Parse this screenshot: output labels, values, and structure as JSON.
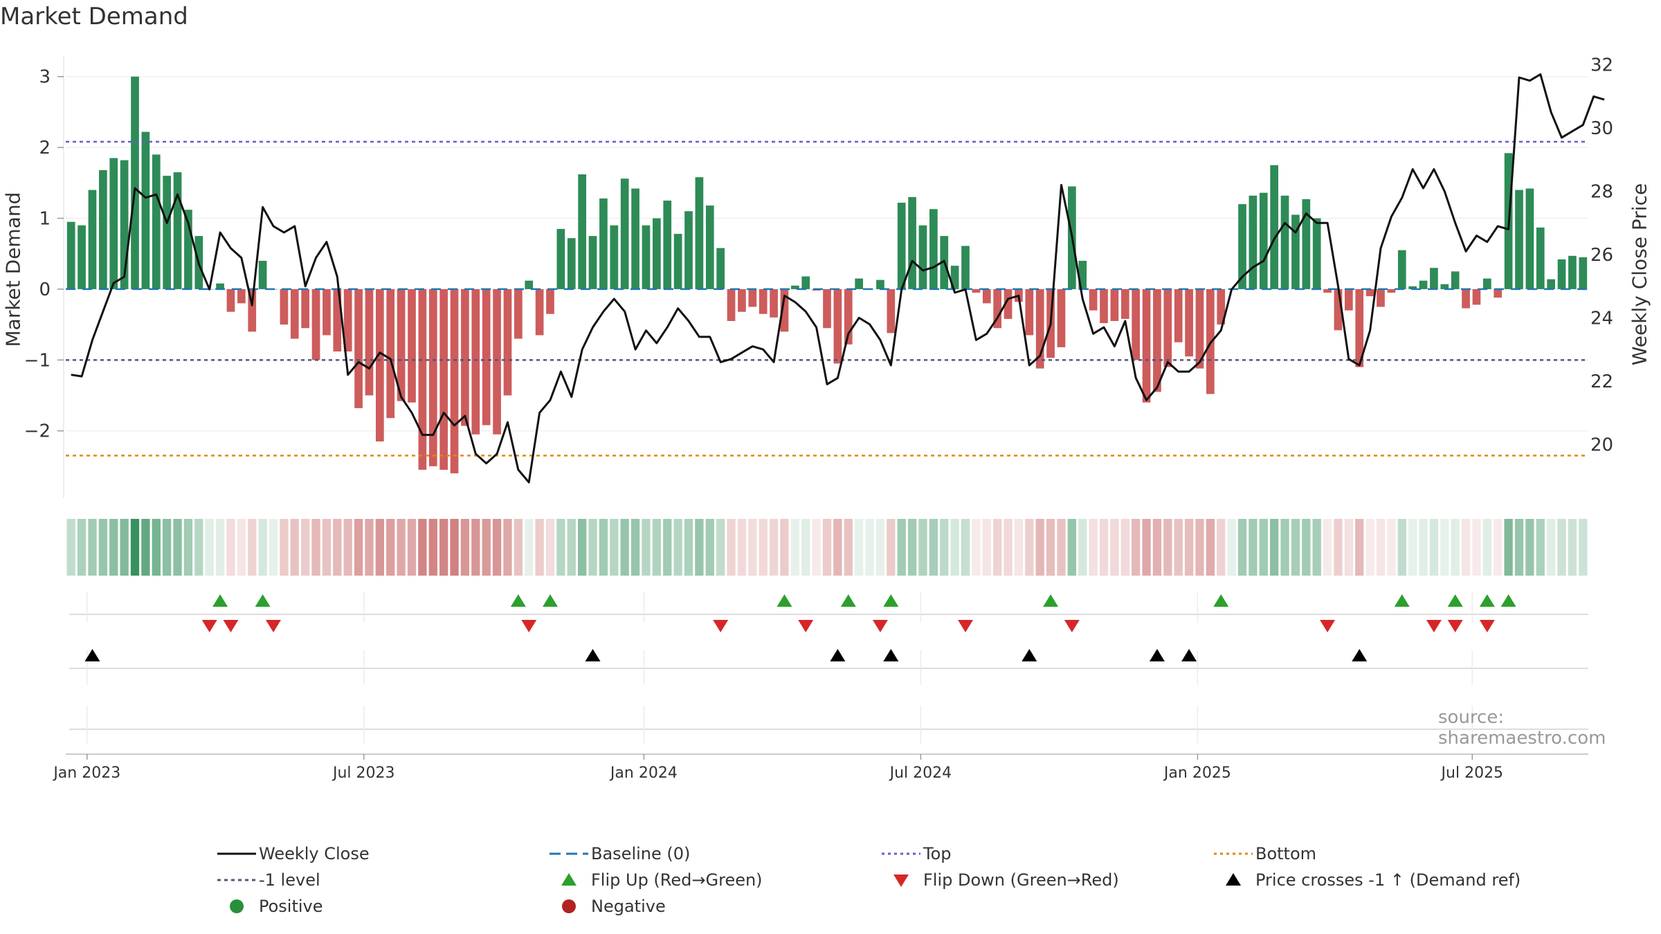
{
  "title": "Market Demand",
  "watermark": "source: sharemaestro.com",
  "chart_data": {
    "type": "bar+line",
    "title": "Market Demand",
    "ylabel_left": "Market Demand",
    "ylabel_right": "Weekly Close Price",
    "ylim_left": [
      -2.95,
      3.3
    ],
    "ylim_right": [
      18.3,
      32.3
    ],
    "yticks_left": [
      -2,
      -1,
      0,
      1,
      2,
      3
    ],
    "yticks_right": [
      20,
      22,
      24,
      26,
      28,
      30,
      32
    ],
    "x_ticks": [
      {
        "label": "Jan 2023",
        "week": 2
      },
      {
        "label": "Jul 2023",
        "week": 28
      },
      {
        "label": "Jan 2024",
        "week": 54.3
      },
      {
        "label": "Jul 2024",
        "week": 80.3
      },
      {
        "label": "Jan 2025",
        "week": 106.3
      },
      {
        "label": "Jul 2025",
        "week": 132.1
      }
    ],
    "reference_lines": {
      "top": 2.08,
      "bottom": -2.35,
      "minus_one": -1,
      "baseline": 0
    },
    "demand": [
      0.95,
      0.9,
      1.4,
      1.68,
      1.85,
      1.82,
      3.0,
      2.22,
      1.9,
      1.6,
      1.65,
      1.12,
      0.75,
      0,
      0.08,
      -0.32,
      -0.2,
      -0.6,
      0.4,
      0,
      -0.5,
      -0.7,
      -0.55,
      -1.0,
      -0.65,
      -0.88,
      -0.88,
      -1.68,
      -1.5,
      -2.15,
      -1.82,
      -1.58,
      -1.6,
      -2.55,
      -2.5,
      -2.55,
      -2.6,
      -1.93,
      -2.05,
      -1.92,
      -2.05,
      -1.5,
      -0.7,
      0.12,
      -0.65,
      -0.35,
      0.85,
      0.72,
      1.62,
      0.75,
      1.28,
      0.9,
      1.56,
      1.42,
      0.9,
      1.0,
      1.25,
      0.78,
      1.1,
      1.58,
      1.18,
      0.58,
      -0.45,
      -0.32,
      -0.25,
      -0.35,
      -0.4,
      -0.6,
      0.05,
      0.18,
      -0.02,
      -0.55,
      -1.05,
      -0.78,
      0.15,
      0,
      0.13,
      -0.62,
      1.22,
      1.3,
      0.9,
      1.13,
      0.75,
      0.33,
      0.61,
      -0.05,
      -0.2,
      -0.55,
      -0.42,
      -0.18,
      -0.65,
      -1.12,
      -0.97,
      -0.82,
      1.45,
      0.4,
      -0.3,
      -0.48,
      -0.45,
      -0.42,
      -1.0,
      -1.6,
      -1.45,
      -1.1,
      -0.75,
      -0.95,
      -1.12,
      -1.48,
      -0.5,
      0,
      1.2,
      1.32,
      1.36,
      1.75,
      1.32,
      1.05,
      1.27,
      1.0,
      -0.05,
      -0.58,
      -0.3,
      -1.1,
      -0.1,
      -0.25,
      -0.05,
      0.55,
      0.04,
      0.12,
      0.3,
      0.07,
      0.25,
      -0.27,
      -0.22,
      0.15,
      -0.12,
      1.92,
      1.4,
      1.42,
      0.87,
      0.14,
      0.42,
      0.47,
      0.45
    ],
    "close": [
      22.2,
      22.15,
      23.3,
      24.2,
      25.1,
      25.3,
      28.1,
      27.8,
      27.9,
      27.0,
      27.9,
      27.0,
      25.7,
      24.9,
      26.7,
      26.2,
      25.9,
      24.4,
      27.5,
      26.9,
      26.7,
      26.9,
      25.0,
      25.9,
      26.4,
      25.3,
      22.2,
      22.6,
      22.4,
      22.9,
      22.7,
      21.5,
      21.0,
      20.3,
      20.3,
      21.0,
      20.6,
      20.9,
      19.7,
      19.4,
      19.7,
      20.7,
      19.2,
      18.8,
      21.0,
      21.4,
      22.3,
      21.5,
      23.0,
      23.7,
      24.2,
      24.6,
      24.2,
      23.0,
      23.6,
      23.2,
      23.7,
      24.3,
      23.9,
      23.4,
      23.4,
      22.6,
      22.7,
      22.9,
      23.1,
      23.0,
      22.6,
      24.7,
      24.5,
      24.2,
      23.7,
      21.9,
      22.1,
      23.5,
      24.0,
      23.8,
      23.3,
      22.5,
      24.9,
      25.8,
      25.5,
      25.6,
      25.8,
      24.8,
      24.9,
      23.3,
      23.5,
      24.0,
      24.6,
      24.7,
      22.5,
      22.8,
      23.8,
      28.2,
      26.6,
      24.6,
      23.5,
      23.7,
      23.1,
      23.9,
      22.1,
      21.4,
      21.8,
      22.6,
      22.3,
      22.3,
      22.6,
      23.2,
      23.6,
      24.9,
      25.3,
      25.6,
      25.8,
      26.5,
      27.0,
      26.7,
      27.3,
      27.0,
      27.0,
      25.0,
      22.7,
      22.5,
      23.6,
      26.2,
      27.2,
      27.8,
      28.7,
      28.1,
      28.7,
      28.0,
      27.0,
      26.1,
      26.6,
      26.4,
      26.9,
      26.8,
      31.6,
      31.5,
      31.7,
      30.5,
      29.7,
      29.9,
      30.1,
      31.0,
      30.9
    ],
    "heatmap": {
      "levels": [
        0.3,
        0.4,
        0.45,
        0.5,
        0.55,
        0.6,
        0.95,
        0.75,
        0.65,
        0.55,
        0.55,
        0.45,
        0.35,
        0.15,
        0.15,
        0.2,
        0.15,
        0.25,
        0.2,
        0.1,
        0.3,
        0.35,
        0.3,
        0.4,
        0.35,
        0.4,
        0.4,
        0.55,
        0.5,
        0.6,
        0.55,
        0.5,
        0.5,
        0.7,
        0.7,
        0.7,
        0.72,
        0.6,
        0.6,
        0.58,
        0.6,
        0.5,
        0.35,
        0.12,
        0.3,
        0.2,
        0.35,
        0.35,
        0.55,
        0.35,
        0.45,
        0.35,
        0.5,
        0.5,
        0.35,
        0.38,
        0.45,
        0.35,
        0.4,
        0.5,
        0.45,
        0.3,
        0.25,
        0.22,
        0.2,
        0.22,
        0.24,
        0.3,
        0.12,
        0.15,
        0.1,
        0.3,
        0.42,
        0.35,
        0.12,
        0.1,
        0.12,
        0.3,
        0.45,
        0.45,
        0.38,
        0.42,
        0.32,
        0.2,
        0.28,
        0.1,
        0.15,
        0.25,
        0.22,
        0.15,
        0.28,
        0.42,
        0.38,
        0.35,
        0.5,
        0.2,
        0.18,
        0.22,
        0.22,
        0.22,
        0.4,
        0.5,
        0.45,
        0.4,
        0.35,
        0.38,
        0.42,
        0.48,
        0.25,
        0.1,
        0.45,
        0.45,
        0.45,
        0.55,
        0.45,
        0.42,
        0.45,
        0.42,
        0.1,
        0.28,
        0.18,
        0.4,
        0.12,
        0.15,
        0.1,
        0.3,
        0.12,
        0.15,
        0.2,
        0.12,
        0.15,
        0.15,
        0.12,
        0.15,
        0.1,
        0.6,
        0.5,
        0.5,
        0.4,
        0.15,
        0.25,
        0.25,
        0.25
      ]
    },
    "flip_up": [
      14,
      18,
      42,
      45,
      67,
      73,
      77,
      92,
      108,
      125,
      130,
      133,
      135
    ],
    "flip_down": [
      13,
      15,
      19,
      43,
      61,
      69,
      76,
      84,
      94,
      118,
      128,
      130,
      133
    ],
    "price_cross_minus1": [
      2,
      49,
      72,
      77,
      90,
      102,
      105,
      121
    ],
    "series": [
      {
        "name": "Weekly Close",
        "color": "#111111"
      },
      {
        "name": "Baseline (0)",
        "color": "#1f77b4"
      },
      {
        "name": "Top",
        "color": "#6a5acd"
      },
      {
        "name": "Bottom",
        "color": "#e08a00"
      },
      {
        "name": "-1 level",
        "color": "#555577"
      },
      {
        "name": "Flip Up (Red→Green)",
        "color": "#2ca02c"
      },
      {
        "name": "Flip Down (Green→Red)",
        "color": "#d62728"
      },
      {
        "name": "Price crosses -1 ↑ (Demand ref)",
        "color": "#000000"
      },
      {
        "name": "Positive",
        "color": "#2a8f3c"
      },
      {
        "name": "Negative",
        "color": "#b22222"
      }
    ]
  }
}
